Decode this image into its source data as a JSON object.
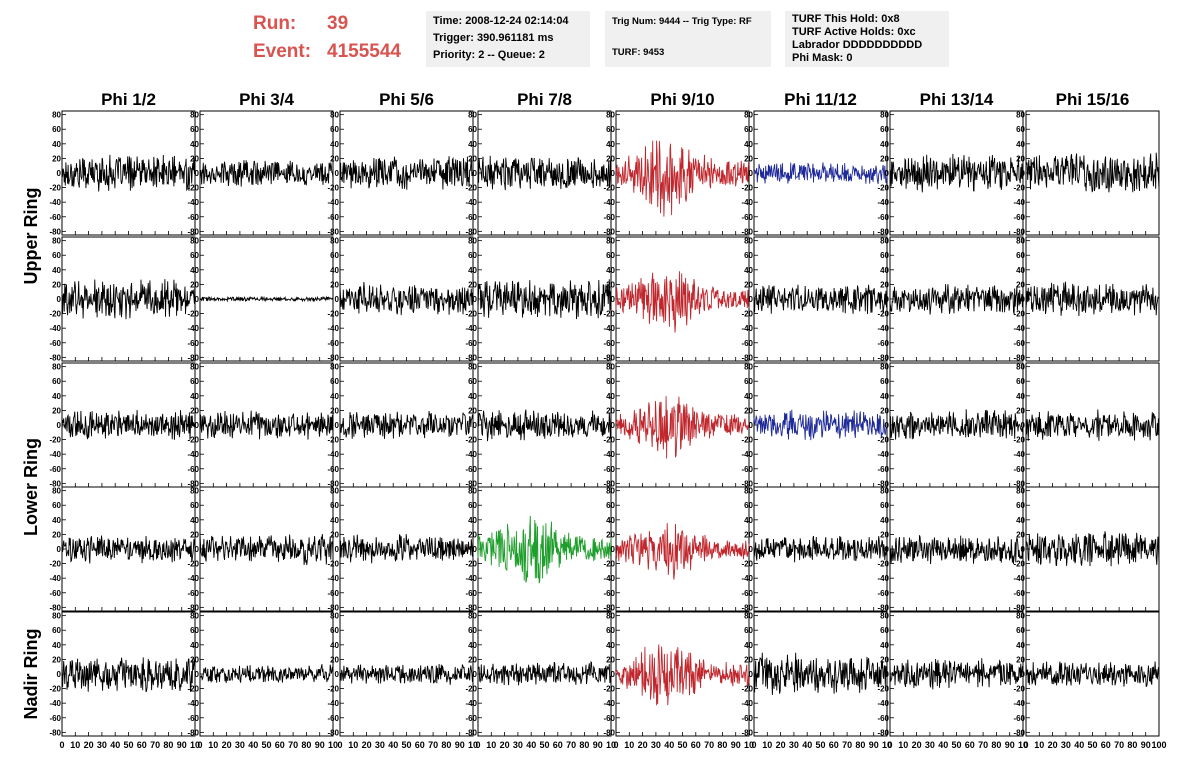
{
  "header": {
    "run_label": "Run:",
    "run_value": "39",
    "event_label": "Event:",
    "event_value": "4155544",
    "time_box": [
      "Time: 2008-12-24 02:14:04",
      "Trigger: 390.961181 ms",
      "Priority: 2 -- Queue: 2"
    ],
    "trig_box": [
      "Trig Num: 9444 -- Trig Type: RF",
      "TURF: 9453"
    ],
    "turf_box": [
      "TURF This Hold: 0x8",
      "TURF Active Holds: 0xc",
      "Labrador DDDDDDDDDD",
      "Phi Mask: 0"
    ]
  },
  "chart_data": {
    "type": "line",
    "columns": [
      "Phi 1/2",
      "Phi 3/4",
      "Phi 5/6",
      "Phi 7/8",
      "Phi 9/10",
      "Phi 11/12",
      "Phi 13/14",
      "Phi 15/16"
    ],
    "rows": [
      "Upper Ring",
      "Lower Ring",
      "Nadir Ring"
    ],
    "xlim": [
      0,
      100
    ],
    "ylim": [
      -85,
      85
    ],
    "x_tick_labels": [
      "0",
      "10",
      "20",
      "30",
      "40",
      "50",
      "60",
      "70",
      "80",
      "90",
      "10"
    ],
    "last_x_tick_label": "100",
    "y_tick_labels": [
      "-80",
      "-60",
      "-40",
      "-20",
      "0",
      "20",
      "40",
      "60",
      "80"
    ],
    "colors": {
      "default": "#000000",
      "red": "#c0272d",
      "blue": "#1f2a99",
      "green": "#1e9e2a"
    },
    "panels": [
      {
        "col": 0,
        "row": 0,
        "amp": 18,
        "color": "default"
      },
      {
        "col": 1,
        "row": 0,
        "amp": 13,
        "color": "default"
      },
      {
        "col": 2,
        "row": 0,
        "amp": 16,
        "color": "default"
      },
      {
        "col": 3,
        "row": 0,
        "amp": 17,
        "color": "default"
      },
      {
        "col": 4,
        "row": 0,
        "amp": 32,
        "color": "red",
        "burst": true
      },
      {
        "col": 5,
        "row": 0,
        "amp": 11,
        "color": "blue"
      },
      {
        "col": 6,
        "row": 0,
        "amp": 18,
        "color": "default"
      },
      {
        "col": 7,
        "row": 0,
        "amp": 20,
        "color": "default"
      },
      {
        "col": 0,
        "row": 1,
        "amp": 20,
        "color": "default"
      },
      {
        "col": 1,
        "row": 1,
        "amp": 2,
        "color": "default"
      },
      {
        "col": 2,
        "row": 1,
        "amp": 16,
        "color": "default"
      },
      {
        "col": 3,
        "row": 1,
        "amp": 19,
        "color": "default"
      },
      {
        "col": 4,
        "row": 1,
        "amp": 26,
        "color": "red",
        "burst": true
      },
      {
        "col": 5,
        "row": 1,
        "amp": 15,
        "color": "default"
      },
      {
        "col": 6,
        "row": 1,
        "amp": 15,
        "color": "default"
      },
      {
        "col": 7,
        "row": 1,
        "amp": 17,
        "color": "default"
      },
      {
        "col": 0,
        "row": 2,
        "amp": 15,
        "color": "default"
      },
      {
        "col": 1,
        "row": 2,
        "amp": 14,
        "color": "default"
      },
      {
        "col": 2,
        "row": 2,
        "amp": 14,
        "color": "default"
      },
      {
        "col": 3,
        "row": 2,
        "amp": 16,
        "color": "default"
      },
      {
        "col": 4,
        "row": 2,
        "amp": 24,
        "color": "red",
        "burst": true
      },
      {
        "col": 5,
        "row": 2,
        "amp": 15,
        "color": "blue"
      },
      {
        "col": 6,
        "row": 2,
        "amp": 15,
        "color": "default"
      },
      {
        "col": 7,
        "row": 2,
        "amp": 15,
        "color": "default"
      },
      {
        "col": 0,
        "row": 3,
        "amp": 14,
        "color": "default"
      },
      {
        "col": 1,
        "row": 3,
        "amp": 15,
        "color": "default"
      },
      {
        "col": 2,
        "row": 3,
        "amp": 14,
        "color": "default"
      },
      {
        "col": 3,
        "row": 3,
        "amp": 28,
        "color": "green",
        "burst": true
      },
      {
        "col": 4,
        "row": 3,
        "amp": 24,
        "color": "red",
        "burst": true
      },
      {
        "col": 5,
        "row": 3,
        "amp": 13,
        "color": "default"
      },
      {
        "col": 6,
        "row": 3,
        "amp": 15,
        "color": "default"
      },
      {
        "col": 7,
        "row": 3,
        "amp": 17,
        "color": "default"
      },
      {
        "col": 0,
        "row": 4,
        "amp": 17,
        "color": "default"
      },
      {
        "col": 1,
        "row": 4,
        "amp": 9,
        "color": "default"
      },
      {
        "col": 2,
        "row": 4,
        "amp": 10,
        "color": "default"
      },
      {
        "col": 3,
        "row": 4,
        "amp": 12,
        "color": "default"
      },
      {
        "col": 4,
        "row": 4,
        "amp": 27,
        "color": "red",
        "burst": true
      },
      {
        "col": 5,
        "row": 4,
        "amp": 20,
        "color": "default"
      },
      {
        "col": 6,
        "row": 4,
        "amp": 15,
        "color": "default"
      },
      {
        "col": 7,
        "row": 4,
        "amp": 13,
        "color": "default"
      }
    ]
  }
}
